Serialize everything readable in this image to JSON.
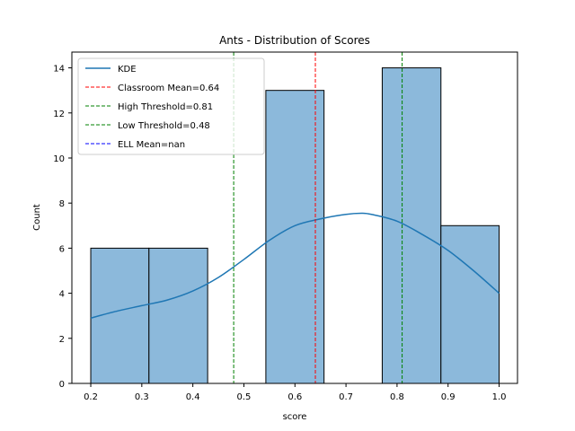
{
  "chart_data": {
    "type": "bar",
    "title": "Ants - Distribution of Scores",
    "xlabel": "score",
    "ylabel": "Count",
    "xlim": [
      0.163,
      1.036
    ],
    "ylim": [
      0,
      14.7
    ],
    "x_ticks": [
      "0.2",
      "0.3",
      "0.4",
      "0.5",
      "0.6",
      "0.7",
      "0.8",
      "0.9",
      "1.0"
    ],
    "y_ticks": [
      "0",
      "2",
      "4",
      "6",
      "8",
      "10",
      "12",
      "14"
    ],
    "bins": [
      {
        "start": 0.2,
        "end": 0.314,
        "count": 6
      },
      {
        "start": 0.314,
        "end": 0.429,
        "count": 6
      },
      {
        "start": 0.429,
        "end": 0.543,
        "count": 0
      },
      {
        "start": 0.543,
        "end": 0.657,
        "count": 13
      },
      {
        "start": 0.657,
        "end": 0.771,
        "count": 0
      },
      {
        "start": 0.771,
        "end": 0.886,
        "count": 14
      },
      {
        "start": 0.886,
        "end": 1.0,
        "count": 7
      }
    ],
    "kde": {
      "name": "KDE",
      "color": "#1f77b4",
      "x": [
        0.2,
        0.25,
        0.3,
        0.35,
        0.4,
        0.45,
        0.5,
        0.55,
        0.6,
        0.65,
        0.7,
        0.73,
        0.75,
        0.8,
        0.85,
        0.9,
        0.95,
        1.0
      ],
      "y": [
        2.9,
        3.2,
        3.45,
        3.7,
        4.1,
        4.7,
        5.5,
        6.35,
        7.0,
        7.3,
        7.5,
        7.55,
        7.5,
        7.2,
        6.6,
        5.9,
        5.0,
        4.0
      ]
    },
    "bar_fill": "#8cb9db",
    "vlines": [
      {
        "x": 0.64,
        "label": "Classroom Mean=0.64",
        "color": "#ff0000"
      },
      {
        "x": 0.81,
        "label": "High Threshold=0.81",
        "color": "#008000"
      },
      {
        "x": 0.48,
        "label": "Low Threshold=0.48",
        "color": "#008000"
      }
    ],
    "legend": {
      "position": "upper-left",
      "entries": [
        {
          "label": "KDE",
          "color": "#1f77b4",
          "style": "solid"
        },
        {
          "label": "Classroom Mean=0.64",
          "color": "#ff0000",
          "style": "dashed"
        },
        {
          "label": "High Threshold=0.81",
          "color": "#008000",
          "style": "dashed"
        },
        {
          "label": "Low Threshold=0.48",
          "color": "#008000",
          "style": "dashed"
        },
        {
          "label": "ELL Mean=nan",
          "color": "#0000ff",
          "style": "dashed"
        }
      ]
    }
  }
}
